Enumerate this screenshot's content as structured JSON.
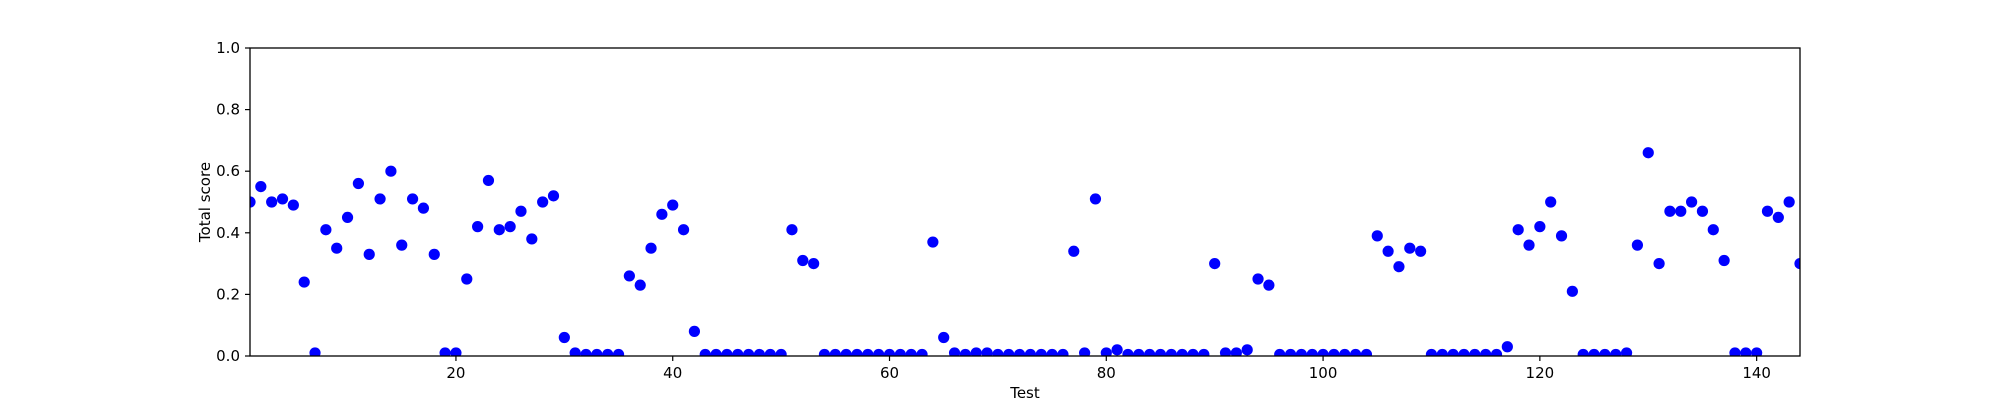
{
  "chart_data": {
    "type": "scatter",
    "xlabel": "Test",
    "ylabel": "Total score",
    "xlim": [
      1,
      144
    ],
    "ylim": [
      0.0,
      1.0
    ],
    "x_ticks": [
      20,
      40,
      60,
      80,
      100,
      120,
      140
    ],
    "y_ticks": [
      0.0,
      0.2,
      0.4,
      0.6,
      0.8,
      1.0
    ],
    "x_tick_labels": [
      "20",
      "40",
      "60",
      "80",
      "100",
      "120",
      "140"
    ],
    "y_tick_labels": [
      "0.0",
      "0.2",
      "0.4",
      "0.6",
      "0.8",
      "1.0"
    ],
    "grid": false,
    "marker_color": "#0000ff",
    "series": [
      {
        "x": [
          1,
          2,
          3,
          4,
          5,
          6,
          7,
          8,
          9,
          10,
          11,
          12,
          13,
          14,
          15,
          16,
          17,
          18,
          19,
          20,
          21,
          22,
          23,
          24,
          25,
          26,
          27,
          28,
          29,
          30,
          31,
          32,
          33,
          34,
          35,
          36,
          37,
          38,
          39,
          40,
          41,
          42,
          43,
          44,
          45,
          46,
          47,
          48,
          49,
          50,
          51,
          52,
          53,
          54,
          55,
          56,
          57,
          58,
          59,
          60,
          61,
          62,
          63,
          64,
          65,
          66,
          67,
          68,
          69,
          70,
          71,
          72,
          73,
          74,
          75,
          76,
          77,
          78,
          79,
          80,
          81,
          82,
          83,
          84,
          85,
          86,
          87,
          88,
          89,
          90,
          91,
          92,
          93,
          94,
          95,
          96,
          97,
          98,
          99,
          100,
          101,
          102,
          103,
          104,
          105,
          106,
          107,
          108,
          109,
          110,
          111,
          112,
          113,
          114,
          115,
          116,
          117,
          118,
          119,
          120,
          121,
          122,
          123,
          124,
          125,
          126,
          127,
          128,
          129,
          130,
          131,
          132,
          133,
          134,
          135,
          136,
          137,
          138,
          139,
          140,
          141,
          142,
          143,
          144
        ],
        "y": [
          0.5,
          0.55,
          0.5,
          0.51,
          0.49,
          0.24,
          0.01,
          0.41,
          0.35,
          0.45,
          0.56,
          0.33,
          0.51,
          0.6,
          0.36,
          0.51,
          0.48,
          0.33,
          0.01,
          0.01,
          0.25,
          0.42,
          0.57,
          0.41,
          0.42,
          0.47,
          0.38,
          0.5,
          0.52,
          0.06,
          0.01,
          0.005,
          0.005,
          0.005,
          0.005,
          0.26,
          0.23,
          0.35,
          0.46,
          0.49,
          0.41,
          0.08,
          0.005,
          0.005,
          0.005,
          0.005,
          0.005,
          0.005,
          0.005,
          0.005,
          0.41,
          0.31,
          0.3,
          0.005,
          0.005,
          0.005,
          0.005,
          0.005,
          0.005,
          0.005,
          0.005,
          0.005,
          0.005,
          0.37,
          0.06,
          0.01,
          0.005,
          0.01,
          0.01,
          0.005,
          0.005,
          0.005,
          0.005,
          0.005,
          0.005,
          0.005,
          0.34,
          0.01,
          0.51,
          0.01,
          0.02,
          0.005,
          0.005,
          0.005,
          0.005,
          0.005,
          0.005,
          0.005,
          0.005,
          0.3,
          0.01,
          0.01,
          0.02,
          0.25,
          0.23,
          0.005,
          0.005,
          0.005,
          0.005,
          0.005,
          0.005,
          0.005,
          0.005,
          0.005,
          0.39,
          0.34,
          0.29,
          0.35,
          0.34,
          0.005,
          0.005,
          0.005,
          0.005,
          0.005,
          0.005,
          0.005,
          0.03,
          0.41,
          0.36,
          0.42,
          0.5,
          0.39,
          0.21,
          0.005,
          0.005,
          0.005,
          0.005,
          0.01,
          0.36,
          0.66,
          0.3,
          0.47,
          0.47,
          0.5,
          0.47,
          0.41,
          0.31,
          0.01,
          0.01,
          0.01,
          0.47,
          0.45,
          0.5,
          0.3
        ]
      }
    ]
  }
}
